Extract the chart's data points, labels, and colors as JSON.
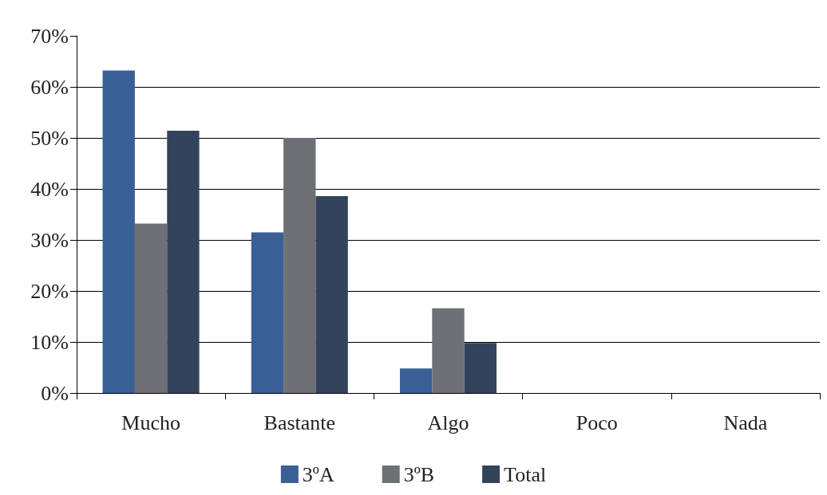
{
  "chart_data": {
    "type": "bar",
    "categories": [
      "Mucho",
      "Bastante",
      "Algo",
      "Poco",
      "Nada"
    ],
    "series": [
      {
        "name": "3ºA",
        "color": "#3a5f96",
        "values": [
          63.2,
          31.5,
          4.8,
          0,
          0
        ]
      },
      {
        "name": "3ºB",
        "color": "#6d7075",
        "values": [
          33.2,
          50,
          16.6,
          0,
          0
        ]
      },
      {
        "name": "Total",
        "color": "#33435c",
        "values": [
          51.4,
          38.6,
          9.8,
          0,
          0
        ]
      }
    ],
    "ylim": [
      0,
      70
    ],
    "yticks": [
      {
        "value": 0,
        "label": "0%"
      },
      {
        "value": 10,
        "label": "10%"
      },
      {
        "value": 20,
        "label": "20%"
      },
      {
        "value": 30,
        "label": "30%"
      },
      {
        "value": 40,
        "label": "40%"
      },
      {
        "value": 50,
        "label": "50%"
      },
      {
        "value": 60,
        "label": "60%"
      },
      {
        "value": 70,
        "label": "70%"
      }
    ],
    "grid": "y",
    "legend": "bottom"
  }
}
